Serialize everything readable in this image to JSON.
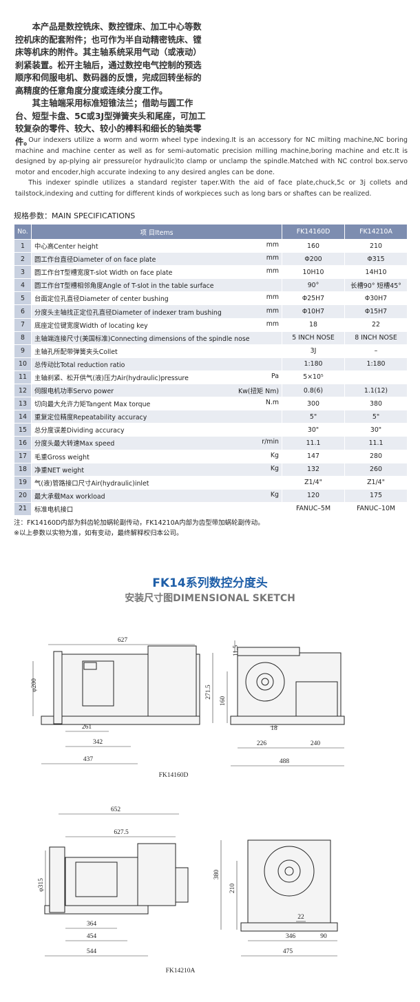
{
  "intro_cn": [
    "本产品是数控铣床、数控镗床、加工中心等数控机床的配套附件；也可作为半自动精密铣床、镗床等机床的附件。其主轴系统采用气动（或液动）刹紧装置。松开主轴后，通过数控电气控制的预选顺序和伺服电机、数码器的反馈，完成回转坐标的高精度的任意角度分度或连续分度工作。",
    "其主轴端采用标准短锥法兰；借助与圆工作台、短型卡盘、5C或3J型弹簧夹头和尾座，可加工较复杂的零件、较大、较小的棒料和细长的轴类零件。"
  ],
  "intro_en": [
    "Our indexers utilize a worm and worm wheel type indexing.It is an accessory for NC milting machine,NC boring machine and machine center as well as for semi-automatic precision milling machine,boring machine and etc.It is designed by ap-plying air pressure(or hydraulic)to clamp or unclamp the spindle.Matched with NC control box.servo motor and encoder,high accurate indexing to any desired angles can be done.",
    "This indexer spindle utilizes a standard register taper.With the aid of face plate,chuck,5c or 3j collets and tailstock,indexing and cutting for different kinds of workpieces such as long bars or shaftes can be realized."
  ],
  "specs": {
    "title": "规格参数：MAIN SPECIFICATIONS",
    "header": [
      "No.",
      "项 目Items",
      "FK14160D",
      "FK14210A"
    ],
    "rows": [
      {
        "no": "1",
        "item": "中心高Center height",
        "unit": "mm",
        "v1": "160",
        "v2": "210"
      },
      {
        "no": "2",
        "item": "圆工作台直径Diameter of on face plate",
        "unit": "mm",
        "v1": "Φ200",
        "v2": "Φ315"
      },
      {
        "no": "3",
        "item": "圆工作台T型槽宽度T-slot Width on face plate",
        "unit": "mm",
        "v1": "10H10",
        "v2": "14H10"
      },
      {
        "no": "4",
        "item": "圆工作台T型槽相邻角度Angle of T-slot in the table surface",
        "v1": "90°",
        "v2": "长槽90°  短槽45°"
      },
      {
        "no": "5",
        "item": "台面定位孔直径Diameter of center bushing",
        "unit": "mm",
        "v1": "Φ25H7",
        "v2": "Φ30H7"
      },
      {
        "no": "6",
        "item": "分度头主轴找正定位孔直径Diameter of indexer tram bushing",
        "unit": "mm",
        "v1": "Φ10H7",
        "v2": "Φ15H7"
      },
      {
        "no": "7",
        "item": "底座定位键宽度Width of locating key",
        "unit": "mm",
        "v1": "18",
        "v2": "22"
      },
      {
        "no": "8",
        "item": "主轴端连接尺寸(美国标准)Connecting dimensions of the spindle nose",
        "v1": "5 INCH NOSE",
        "v2": "8 INCH NOSE"
      },
      {
        "no": "9",
        "item": "主轴孔所配带弹簧夹头Collet",
        "v1": "3J",
        "v2": "–"
      },
      {
        "no": "10",
        "item": "总传动比Total reduction ratio",
        "v1": "1:180",
        "v2": "1:180"
      },
      {
        "no": "11",
        "item": "主轴刹紧、松开供气(液)压力Air(hydraulic)pressure",
        "unit": "Pa",
        "v1": "5×10⁵"
      },
      {
        "no": "12",
        "item": "伺服电机功率Servo power",
        "unit": "Kw(扭矩 Nm)",
        "v1": "0.8(6)",
        "v2": "1.1(12)"
      },
      {
        "no": "13",
        "item": "切向最大允许力矩Tangent Max torque",
        "unit": "N.m",
        "v1": "300",
        "v2": "380"
      },
      {
        "no": "14",
        "item": "重复定位精度Repeatability accuracy",
        "v1": "5\"",
        "v2": "5\""
      },
      {
        "no": "15",
        "item": "总分度误差Dividing accuracy",
        "v1": "30\"",
        "v2": "30\""
      },
      {
        "no": "16",
        "item": "分度头最大转速Max speed",
        "unit": "r/min",
        "v1": "11.1",
        "v2": "11.1"
      },
      {
        "no": "17",
        "item": "毛重Gross weight",
        "unit": "Kg",
        "v1": "147",
        "v2": "280"
      },
      {
        "no": "18",
        "item": "净重NET weight",
        "unit": "Kg",
        "v1": "132",
        "v2": "260"
      },
      {
        "no": "19",
        "item": "气(液)管路接口尺寸Air(hydraulic)inlet",
        "v1": "Z1/4\"",
        "v2": "Z1/4\""
      },
      {
        "no": "20",
        "item": "最大承载Max workload",
        "unit": "Kg",
        "v1": "120",
        "v2": "175"
      },
      {
        "no": "21",
        "item": "标准电机接口",
        "v1": "FANUC–5M",
        "v2": "FANUC–10M"
      }
    ]
  },
  "notes": [
    "注：FK14160D内部为斜齿轮加蜗轮副传动，FK14210A内部为齿型带加蜗轮副传动。",
    "※以上参数以实物为准，如有变动，最终解释权归本公司。"
  ],
  "sketch": {
    "title": "FK14系列数控分度头",
    "subtitle": "安装尺寸图DIMENSIONAL SKETCH",
    "views": [
      {
        "caption": "FK14160D",
        "dims": [
          "627",
          "φ200",
          "261",
          "342",
          "437",
          "11.5",
          "271.5",
          "160",
          "18",
          "226",
          "240",
          "488"
        ]
      },
      {
        "caption": "FK14210A",
        "dims": [
          "652",
          "627.5",
          "φ315",
          "364",
          "454",
          "544",
          "380",
          "210",
          "22",
          "346",
          "90",
          "475"
        ]
      }
    ]
  }
}
